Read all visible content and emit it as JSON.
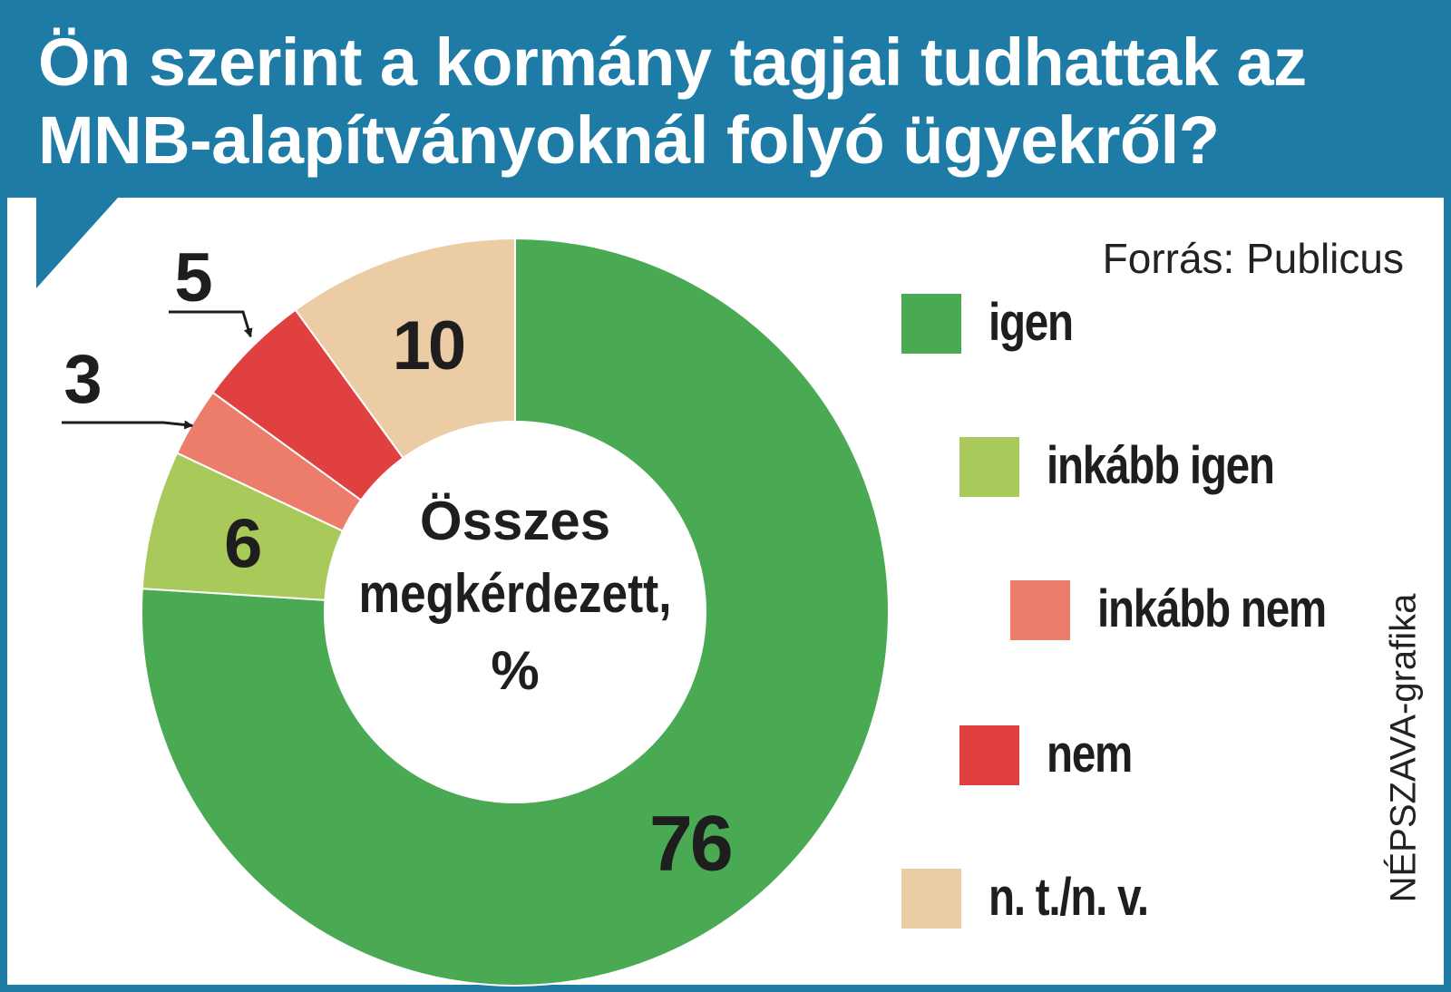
{
  "title": "Ön szerint a kormány tagjai tudhattak az MNB-alapítványoknál folyó ügyekről?",
  "source": "Forrás: Publicus",
  "credit": "NÉPSZAVA-grafika",
  "center_label": [
    "Összes",
    "megkérdezett,",
    "%"
  ],
  "chart_data": {
    "type": "pie",
    "donut": true,
    "unit": "%",
    "categories": [
      "igen",
      "inkább igen",
      "inkább nem",
      "nem",
      "n. t./n. v."
    ],
    "values": [
      76,
      6,
      3,
      5,
      10
    ],
    "colors": [
      "#4aaa54",
      "#a9c95a",
      "#ec7d6a",
      "#e04040",
      "#ebcca4"
    ],
    "data_labels": [
      "76",
      "6",
      "3",
      "5",
      "10"
    ],
    "legend_position": "right",
    "start": "top",
    "direction": "clockwise"
  }
}
